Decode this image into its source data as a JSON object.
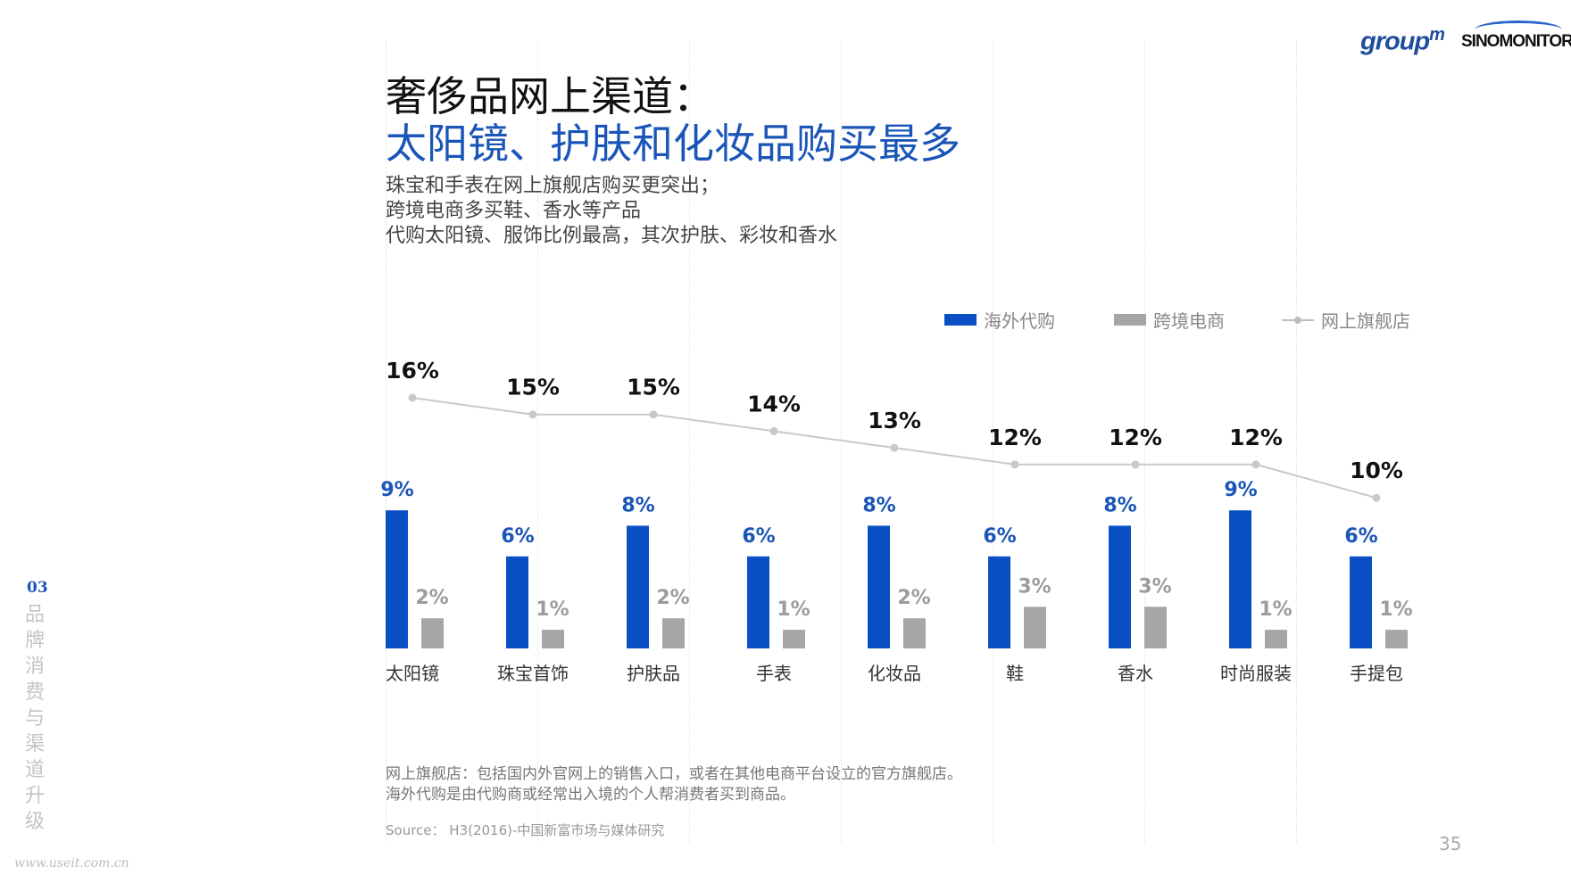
{
  "header": {
    "title_line1": "奢侈品网上渠道：",
    "title_line2": "太阳镜、护肤和化妆品购买最多",
    "subtitle_lines": [
      "珠宝和手表在网上旗舰店购买更突出；",
      "跨境电商多买鞋、香水等产品",
      "代购太阳镜、服饰比例最高，其次护肤、彩妆和香水"
    ]
  },
  "logos": {
    "groupm": "group",
    "groupm_sup": "m",
    "sinomonitor": "SINOMONITOR"
  },
  "colors": {
    "overseas": "#0a50c4",
    "crossborder": "#a6a6a6",
    "flagship": "#c9c9c9",
    "accent": "#1a55b8"
  },
  "chart_data": {
    "type": "bar",
    "categories": [
      "太阳镜",
      "珠宝首饰",
      "护肤品",
      "手表",
      "化妆品",
      "鞋",
      "香水",
      "时尚服装",
      "手提包"
    ],
    "series": [
      {
        "name": "海外代购",
        "type": "bar",
        "values": [
          9,
          6,
          8,
          6,
          8,
          6,
          8,
          9,
          6
        ]
      },
      {
        "name": "跨境电商",
        "type": "bar",
        "values": [
          2,
          1,
          2,
          1,
          2,
          3,
          3,
          1,
          1
        ]
      },
      {
        "name": "网上旗舰店",
        "type": "line",
        "values": [
          16,
          15,
          15,
          14,
          13,
          12,
          12,
          12,
          10
        ]
      }
    ],
    "value_suffix": "%",
    "legend_position": "top-right"
  },
  "notes": [
    "网上旗舰店：包括国内外官网上的销售入口，或者在其他电商平台设立的官方旗舰店。",
    "海外代购是由代购商或经常出入境的个人帮消费者买到商品。"
  ],
  "source": "Source：  H3(2016)-中国新富市场与媒体研究",
  "page_number": "35",
  "section": {
    "number": "03",
    "label": "品牌消费与渠道升级"
  },
  "watermark": "www.useit.com.cn"
}
